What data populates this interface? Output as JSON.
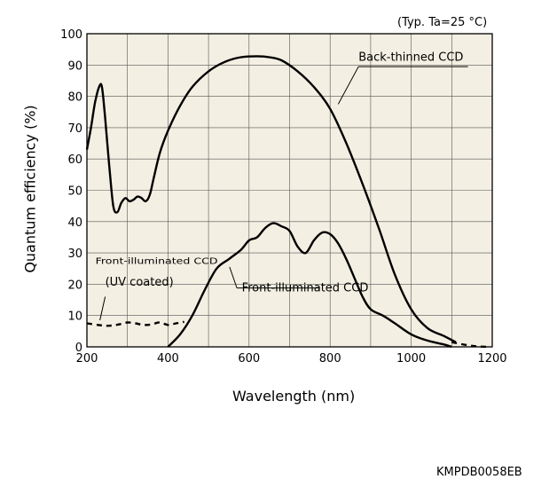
{
  "notes": {
    "condition": "(Typ. Ta=25 °C)",
    "document_code": "KMPDB0058EB"
  },
  "colors": {
    "plot_background": "#f3efe2",
    "grid": "#555555",
    "line": "#000000"
  },
  "chart_data": {
    "type": "line",
    "title": "",
    "xlabel": "Wavelength (nm)",
    "ylabel": "Quantum efficiency (%)",
    "xlim": [
      200,
      1200
    ],
    "ylim": [
      0,
      100
    ],
    "xticks": [
      200,
      400,
      600,
      800,
      1000,
      1200
    ],
    "yticks": [
      0,
      10,
      20,
      30,
      40,
      50,
      60,
      70,
      80,
      90,
      100
    ],
    "grid": true,
    "series": [
      {
        "name": "Back-thinned CCD",
        "style": "solid",
        "x": [
          200,
          210,
          220,
          230,
          237,
          245,
          255,
          265,
          275,
          285,
          295,
          305,
          315,
          325,
          335,
          345,
          355,
          365,
          380,
          400,
          430,
          460,
          500,
          540,
          580,
          620,
          650,
          680,
          720,
          760,
          800,
          840,
          880,
          920,
          960,
          1000,
          1040,
          1080,
          1110
        ],
        "y": [
          63,
          70,
          78,
          83,
          83,
          73,
          58,
          45,
          43,
          46,
          47.5,
          46.5,
          47,
          48,
          47.5,
          46.5,
          48.5,
          54,
          62,
          69,
          77,
          83,
          88,
          91,
          92.5,
          92.8,
          92.5,
          91.5,
          88,
          83,
          76,
          65,
          52,
          38,
          23,
          12,
          6,
          3.5,
          1.5
        ]
      },
      {
        "name": "Front-illuminated CCD",
        "style": "solid",
        "x": [
          400,
          430,
          460,
          490,
          520,
          550,
          580,
          600,
          620,
          640,
          660,
          680,
          700,
          720,
          740,
          760,
          780,
          800,
          820,
          840,
          860,
          880,
          900,
          930,
          960,
          1000,
          1040,
          1080,
          1100
        ],
        "y": [
          0,
          4,
          10,
          18,
          25,
          28,
          31,
          34,
          35,
          38,
          39.5,
          38.5,
          37,
          32,
          30,
          34,
          36.5,
          36,
          33,
          28,
          22,
          16,
          12,
          10,
          7.5,
          4,
          2,
          0.8,
          0
        ]
      },
      {
        "name": "Front-illuminated CCD (UV coated)",
        "style": "dashed",
        "x": [
          200,
          240,
          260,
          280,
          300,
          320,
          340,
          360,
          380,
          400,
          420,
          440
        ],
        "y": [
          7.5,
          6.8,
          6.8,
          7.2,
          7.8,
          7.5,
          7.0,
          7.2,
          7.8,
          7.0,
          7.5,
          8.0
        ],
        "x2": [
          1100,
          1140,
          1170,
          1190
        ],
        "y2": [
          1.5,
          0.5,
          0.1,
          0
        ]
      }
    ],
    "annotations": {
      "back": "Back-thinned CCD",
      "front": "Front-illuminated CCD",
      "uv_line1": "Front-illuminated CCD",
      "uv_line2": "(UV coated)"
    }
  }
}
